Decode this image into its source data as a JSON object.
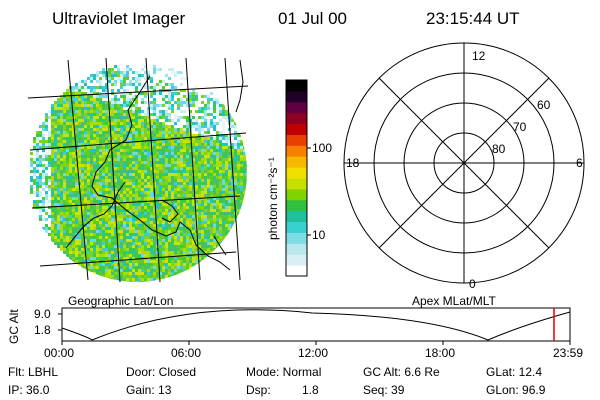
{
  "header": {
    "title": "Ultraviolet Imager",
    "date": "01 Jul 00",
    "time": "23:15:44 UT"
  },
  "left_panel": {
    "caption": "Geographic Lat/Lon"
  },
  "colorbar": {
    "unit_label": "photon cm⁻²s⁻¹",
    "ticks": [
      "100",
      "10"
    ],
    "colors": [
      "#ffffff",
      "#d8f0f4",
      "#b8e8ee",
      "#7fdce4",
      "#3ad0d0",
      "#1fc0a0",
      "#2fc040",
      "#7fd400",
      "#c8e000",
      "#f0e000",
      "#f8b800",
      "#f88000",
      "#e84000",
      "#c00000",
      "#900020",
      "#600040",
      "#200028",
      "#000000"
    ]
  },
  "polar_plot": {
    "caption": "Apex MLat/MLT",
    "mlt_labels": {
      "top": "12",
      "left": "18",
      "right": "6",
      "bottom": "0"
    },
    "lat_labels": [
      "60",
      "70",
      "80"
    ]
  },
  "altitude_plot": {
    "ylabel": "GC Alt",
    "y_ticks": [
      "9.0",
      "1.8"
    ],
    "x_ticks": [
      "00:00",
      "06:00",
      "12:00",
      "18:00",
      "23:59"
    ],
    "marker_color": "#dd0000"
  },
  "info": {
    "flt": "Flt: LBHL",
    "door": "Door: Closed",
    "mode": "Mode: Normal",
    "gc_alt": "GC Alt: 6.6 Re",
    "glat": "GLat: 12.4",
    "ip": "IP: 36.0",
    "gain": "Gain: 13",
    "dsp_label": "Dsp:",
    "dsp_value": "1.8",
    "seq": "Seq: 39",
    "glon": "GLon: 96.9"
  }
}
